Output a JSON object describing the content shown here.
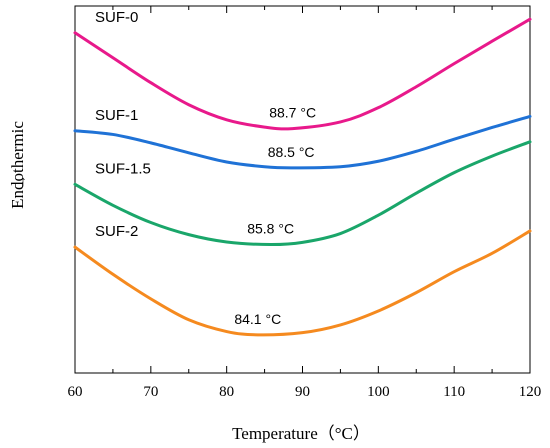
{
  "chart_data": {
    "type": "line",
    "xlabel": "Temperature（°C）",
    "ylabel": "Endothermic",
    "ylabel_arrow": "↑",
    "xlim": [
      60,
      120
    ],
    "ylim": [
      0,
      1
    ],
    "x_ticks": [
      60,
      70,
      80,
      90,
      100,
      110,
      120
    ],
    "y_ticks_shown": false,
    "grid": false,
    "series": [
      {
        "name": "SUF-0",
        "color": "#e8198b",
        "peak_label": "88.7 °C",
        "peak_x": 88.7,
        "points": [
          [
            60,
            0.927
          ],
          [
            65,
            0.859
          ],
          [
            70,
            0.791
          ],
          [
            75,
            0.731
          ],
          [
            80,
            0.69
          ],
          [
            85,
            0.67
          ],
          [
            88.7,
            0.666
          ],
          [
            95,
            0.684
          ],
          [
            100,
            0.723
          ],
          [
            105,
            0.78
          ],
          [
            110,
            0.843
          ],
          [
            115,
            0.904
          ],
          [
            120,
            0.964
          ]
        ]
      },
      {
        "name": "SUF-1",
        "color": "#1f72d6",
        "peak_label": "88.5 °C",
        "peak_x": 88.5,
        "points": [
          [
            60,
            0.66
          ],
          [
            65,
            0.65
          ],
          [
            70,
            0.627
          ],
          [
            75,
            0.6
          ],
          [
            80,
            0.575
          ],
          [
            85,
            0.562
          ],
          [
            88.5,
            0.559
          ],
          [
            95,
            0.562
          ],
          [
            100,
            0.577
          ],
          [
            105,
            0.604
          ],
          [
            110,
            0.637
          ],
          [
            115,
            0.669
          ],
          [
            120,
            0.699
          ]
        ]
      },
      {
        "name": "SUF-1.5",
        "color": "#1aa66a",
        "peak_label": "85.8 °C",
        "peak_x": 85.8,
        "points": [
          [
            60,
            0.514
          ],
          [
            65,
            0.457
          ],
          [
            70,
            0.41
          ],
          [
            75,
            0.377
          ],
          [
            80,
            0.357
          ],
          [
            85.8,
            0.35
          ],
          [
            90,
            0.356
          ],
          [
            95,
            0.38
          ],
          [
            100,
            0.43
          ],
          [
            105,
            0.49
          ],
          [
            110,
            0.546
          ],
          [
            115,
            0.591
          ],
          [
            120,
            0.63
          ]
        ]
      },
      {
        "name": "SUF-2",
        "color": "#f58a1f",
        "peak_label": "84.1 °C",
        "peak_x": 84.1,
        "points": [
          [
            60,
            0.343
          ],
          [
            65,
            0.269
          ],
          [
            70,
            0.202
          ],
          [
            75,
            0.145
          ],
          [
            80,
            0.113
          ],
          [
            84.1,
            0.104
          ],
          [
            90,
            0.11
          ],
          [
            95,
            0.131
          ],
          [
            100,
            0.169
          ],
          [
            105,
            0.219
          ],
          [
            110,
            0.276
          ],
          [
            115,
            0.326
          ],
          [
            120,
            0.387
          ]
        ]
      }
    ]
  }
}
